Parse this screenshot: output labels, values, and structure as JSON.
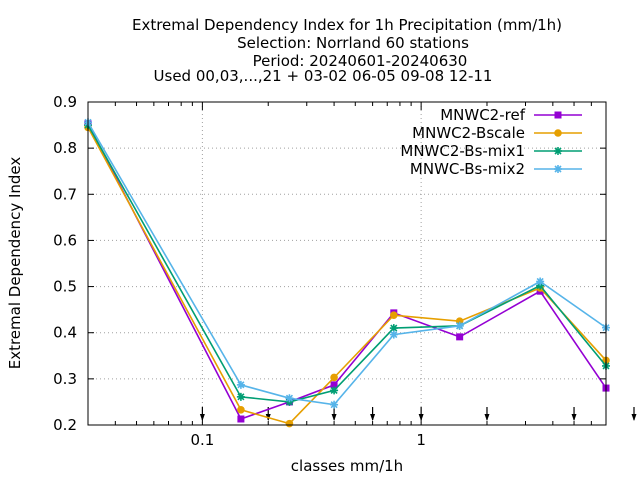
{
  "chart_data": {
    "type": "line",
    "title_lines": [
      "Extremal Dependency Index  for 1h Precipitation (mm/1h)",
      "Selection: Norrland     60 stations",
      "Period: 20240601-20240630",
      "Used 00,03,...,21 + 03-02 06-05 09-08 12-11"
    ],
    "xlabel": "classes mm/1h",
    "ylabel": "Extremal Dependency Index",
    "x_scale": "log",
    "xlim": [
      0.03,
      7.0
    ],
    "ylim": [
      0.2,
      0.9
    ],
    "x_ticks": [
      {
        "value": 0.1,
        "label": "0.1"
      },
      {
        "value": 1,
        "label": "1"
      }
    ],
    "y_ticks": [
      {
        "value": 0.2,
        "label": "0.2"
      },
      {
        "value": 0.3,
        "label": "0.3"
      },
      {
        "value": 0.4,
        "label": "0.4"
      },
      {
        "value": 0.5,
        "label": "0.5"
      },
      {
        "value": 0.6,
        "label": "0.6"
      },
      {
        "value": 0.7,
        "label": "0.7"
      },
      {
        "value": 0.8,
        "label": "0.8"
      },
      {
        "value": 0.9,
        "label": "0.9"
      }
    ],
    "grid": true,
    "legend_position": "top-right",
    "class_arrows_x": [
      0.1,
      0.2,
      0.4,
      0.6,
      1.0,
      2.0,
      5.0,
      10.0
    ],
    "x": [
      0.03,
      0.15,
      0.25,
      0.4,
      0.75,
      1.5,
      3.5,
      7.0
    ],
    "series": [
      {
        "name": "MNWC2-ref",
        "color": "#9400d3",
        "marker": "square",
        "values": [
          0.853,
          0.213,
          0.25,
          0.287,
          0.443,
          0.391,
          0.49,
          0.28
        ]
      },
      {
        "name": "MNWC2-Bscale",
        "color": "#e69f00",
        "marker": "circle",
        "values": [
          0.845,
          0.233,
          0.203,
          0.303,
          0.438,
          0.425,
          0.497,
          0.34
        ]
      },
      {
        "name": "MNWC2-Bs-mix1",
        "color": "#009e73",
        "marker": "star",
        "values": [
          0.85,
          0.261,
          0.25,
          0.275,
          0.41,
          0.415,
          0.502,
          0.328
        ]
      },
      {
        "name": "MNWC-Bs-mix2",
        "color": "#56b4e9",
        "marker": "star",
        "values": [
          0.856,
          0.287,
          0.258,
          0.244,
          0.396,
          0.415,
          0.511,
          0.411
        ]
      }
    ]
  }
}
